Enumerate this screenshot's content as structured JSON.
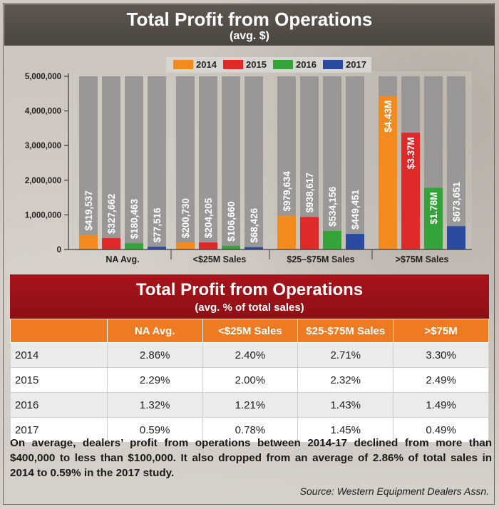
{
  "header": {
    "title": "Total Profit from Operations",
    "subtitle": "(avg. $)"
  },
  "colors": {
    "2014": "#f28a1e",
    "2015": "#e02a2a",
    "2016": "#36a33a",
    "2017": "#2a4aa0",
    "track": "#9a9896"
  },
  "chart_data": {
    "type": "bar",
    "title": "Total Profit from Operations",
    "subtitle": "(avg. $)",
    "categories": [
      "NA Avg.",
      "<$25M Sales",
      "$25–$75M Sales",
      ">$75M Sales"
    ],
    "series": [
      {
        "name": "2014",
        "values": [
          419537,
          200730,
          979634,
          4430000
        ],
        "labels": [
          "$419,537",
          "$200,730",
          "$979,634",
          "$4.43M"
        ]
      },
      {
        "name": "2015",
        "values": [
          327662,
          204205,
          938617,
          3370000
        ],
        "labels": [
          "$327,662",
          "$204,205",
          "$938,617",
          "$3.37M"
        ]
      },
      {
        "name": "2016",
        "values": [
          180463,
          106660,
          534156,
          1780000
        ],
        "labels": [
          "$180,463",
          "$106,660",
          "$534,156",
          "$1.78M"
        ]
      },
      {
        "name": "2017",
        "values": [
          77516,
          68426,
          449451,
          673651
        ],
        "labels": [
          "$77,516",
          "$68,426",
          "$449,451",
          "$673,651"
        ]
      }
    ],
    "yticks": [
      "5,000,000",
      "4,000,000",
      "3,000,000",
      "2,000,000",
      "1,000,000",
      "0"
    ],
    "ytick_values": [
      5000000,
      4000000,
      3000000,
      2000000,
      1000000,
      0
    ],
    "ylim": [
      0,
      5000000
    ],
    "legend_position": "top",
    "xlabel": "",
    "ylabel": ""
  },
  "table": {
    "title": "Total Profit from Operations",
    "subtitle": "(avg. % of total sales)",
    "columns": [
      "",
      "NA Avg.",
      "<$25M Sales",
      "$25-$75M Sales",
      ">$75M"
    ],
    "rows": [
      {
        "year": "2014",
        "cells": [
          "2.86%",
          "2.40%",
          "2.71%",
          "3.30%"
        ]
      },
      {
        "year": "2015",
        "cells": [
          "2.29%",
          "2.00%",
          "2.32%",
          "2.49%"
        ]
      },
      {
        "year": "2016",
        "cells": [
          "1.32%",
          "1.21%",
          "1.43%",
          "1.49%"
        ]
      },
      {
        "year": "2017",
        "cells": [
          "0.59%",
          "0.78%",
          "1.45%",
          "0.49%"
        ]
      }
    ]
  },
  "caption": "On average, dealers’ profit from operations between 2014-17 declined from more than $400,000 to less than $100,000. It also dropped from an average of 2.86% of total sales in 2014 to 0.59% in the 2017 study.",
  "source": "Source: Western Equipment Dealers Assn."
}
